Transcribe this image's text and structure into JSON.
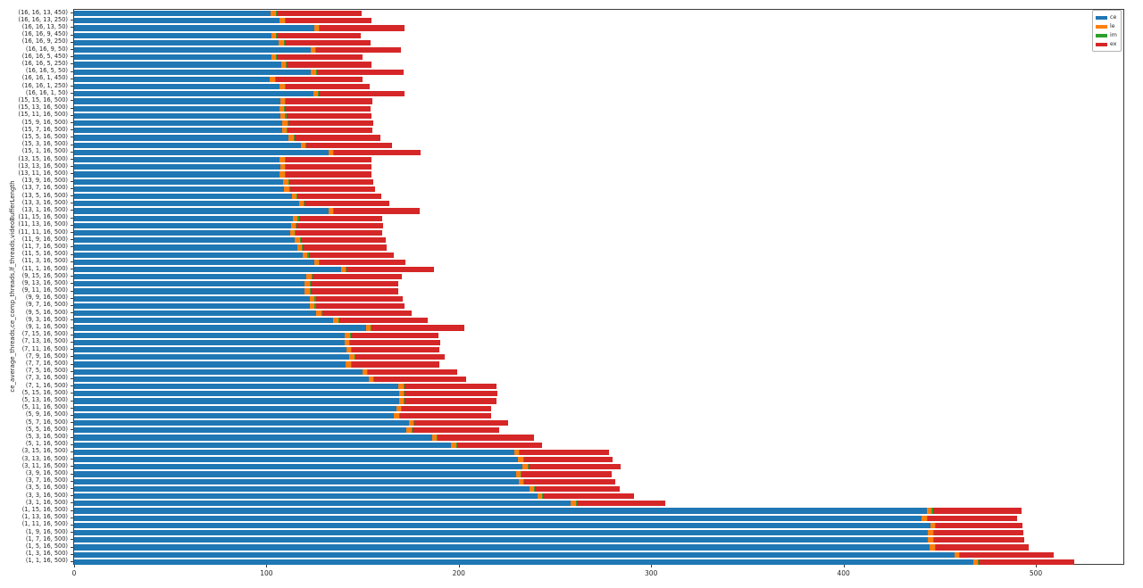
{
  "figure": {
    "background": "#ffffff"
  },
  "chart_data": {
    "type": "bar",
    "orientation": "horizontal",
    "stacked": true,
    "title": "",
    "xlabel": "",
    "ylabel": "ce_average_threads,ce_comp_threads,lf_threads,videoBufferLength",
    "xlim": [
      0,
      545.5
    ],
    "x_ticks": [
      0,
      100,
      200,
      300,
      400,
      500
    ],
    "grid": false,
    "legend": {
      "position": "upper right",
      "entries": [
        "ce",
        "le",
        "im",
        "ex"
      ]
    },
    "colors": {
      "ce": "#1f77b4",
      "le": "#ff7f0e",
      "im": "#2ca02c",
      "ex": "#d62728"
    },
    "categories": [
      "(16, 16, 13, 450)",
      "(16, 16, 13, 250)",
      "(16, 16, 13, 50)",
      "(16, 16, 9, 450)",
      "(16, 16, 9, 250)",
      "(16, 16, 9, 50)",
      "(16, 16, 5, 450)",
      "(16, 16, 5, 250)",
      "(16, 16, 5, 50)",
      "(16, 16, 1, 450)",
      "(16, 16, 1, 250)",
      "(16, 16, 1, 50)",
      "(15, 15, 16, 500)",
      "(15, 13, 16, 500)",
      "(15, 11, 16, 500)",
      "(15, 9, 16, 500)",
      "(15, 7, 16, 500)",
      "(15, 5, 16, 500)",
      "(15, 3, 16, 500)",
      "(15, 1, 16, 500)",
      "(13, 15, 16, 500)",
      "(13, 13, 16, 500)",
      "(13, 11, 16, 500)",
      "(13, 9, 16, 500)",
      "(13, 7, 16, 500)",
      "(13, 5, 16, 500)",
      "(13, 3, 16, 500)",
      "(13, 1, 16, 500)",
      "(11, 15, 16, 500)",
      "(11, 13, 16, 500)",
      "(11, 11, 16, 500)",
      "(11, 9, 16, 500)",
      "(11, 7, 16, 500)",
      "(11, 5, 16, 500)",
      "(11, 3, 16, 500)",
      "(11, 1, 16, 500)",
      "(9, 15, 16, 500)",
      "(9, 13, 16, 500)",
      "(9, 11, 16, 500)",
      "(9, 9, 16, 500)",
      "(9, 7, 16, 500)",
      "(9, 5, 16, 500)",
      "(9, 3, 16, 500)",
      "(9, 1, 16, 500)",
      "(7, 15, 16, 500)",
      "(7, 13, 16, 500)",
      "(7, 11, 16, 500)",
      "(7, 9, 16, 500)",
      "(7, 7, 16, 500)",
      "(7, 5, 16, 500)",
      "(7, 3, 16, 500)",
      "(7, 1, 16, 500)",
      "(5, 15, 16, 500)",
      "(5, 13, 16, 500)",
      "(5, 11, 16, 500)",
      "(5, 9, 16, 500)",
      "(5, 7, 16, 500)",
      "(5, 5, 16, 500)",
      "(5, 3, 16, 500)",
      "(5, 1, 16, 500)",
      "(3, 15, 16, 500)",
      "(3, 13, 16, 500)",
      "(3, 11, 16, 500)",
      "(3, 9, 16, 500)",
      "(3, 7, 16, 500)",
      "(3, 5, 16, 500)",
      "(3, 3, 16, 500)",
      "(3, 1, 16, 500)",
      "(1, 15, 16, 500)",
      "(1, 13, 16, 500)",
      "(1, 11, 16, 500)",
      "(1, 9, 16, 500)",
      "(1, 7, 16, 500)",
      "(1, 5, 16, 500)",
      "(1, 3, 16, 500)",
      "(1, 1, 16, 500)"
    ],
    "series": [
      {
        "name": "ce",
        "color": "#1f77b4",
        "values": [
          102.2,
          106.9,
          124.7,
          102.5,
          106.4,
          122.8,
          102.5,
          107.7,
          123.1,
          101.9,
          106.9,
          124.2,
          107.2,
          106.6,
          107.3,
          108.4,
          108.1,
          111.5,
          117.7,
          132.3,
          106.9,
          107.2,
          106.9,
          108.7,
          109.2,
          113.1,
          116.9,
          132.3,
          113.8,
          112.8,
          112.3,
          114.9,
          115.9,
          118.9,
          124.7,
          138.6,
          120.8,
          120.0,
          120.0,
          122.6,
          122.6,
          125.9,
          134.7,
          151.7,
          140.9,
          140.5,
          141.6,
          143.2,
          141.2,
          149.8,
          153.2,
          168.7,
          169.0,
          169.0,
          167.6,
          166.4,
          174.1,
          172.9,
          186.0,
          196.0,
          228.9,
          230.9,
          233.2,
          229.7,
          231.2,
          236.6,
          240.9,
          258.2,
          443.4,
          440.8,
          445.1,
          443.9,
          443.9,
          444.9,
          457.7,
          467.4
        ]
      },
      {
        "name": "le",
        "color": "#ff7f0e",
        "values": [
          2.5,
          2.5,
          2.5,
          2.5,
          2.5,
          2.5,
          2.5,
          2.5,
          2.5,
          2.5,
          2.5,
          2.5,
          2.5,
          2.5,
          2.5,
          2.5,
          2.5,
          2.5,
          2.5,
          2.5,
          2.5,
          2.5,
          2.5,
          2.5,
          2.5,
          2.5,
          2.5,
          2.5,
          2.5,
          2.5,
          2.5,
          2.5,
          2.5,
          2.5,
          2.5,
          2.5,
          2.5,
          2.5,
          2.5,
          2.5,
          2.5,
          2.5,
          2.5,
          2.5,
          2.5,
          2.5,
          2.5,
          2.5,
          2.5,
          2.5,
          2.5,
          2.5,
          2.5,
          2.5,
          2.5,
          2.5,
          2.5,
          2.5,
          2.5,
          2.5,
          2.5,
          2.5,
          2.5,
          2.5,
          2.5,
          2.5,
          2.5,
          2.5,
          2.5,
          2.5,
          2.5,
          2.5,
          2.5,
          2.5,
          2.5,
          2.5
        ]
      },
      {
        "name": "im",
        "color": "#2ca02c",
        "values": [
          0.5,
          0.5,
          0.5,
          0.5,
          0.5,
          0.5,
          0.5,
          0.5,
          0.5,
          0.5,
          0.5,
          0.5,
          0.5,
          0.5,
          0.5,
          0.5,
          0.5,
          0.5,
          0.5,
          0.5,
          0.5,
          0.5,
          0.5,
          0.5,
          0.5,
          0.5,
          0.5,
          0.5,
          0.5,
          0.5,
          0.5,
          0.5,
          0.5,
          0.5,
          0.5,
          0.5,
          0.5,
          0.5,
          0.5,
          0.5,
          0.5,
          0.5,
          0.5,
          0.5,
          0.5,
          0.5,
          0.5,
          0.5,
          0.5,
          0.5,
          0.5,
          0.5,
          0.5,
          0.5,
          0.5,
          0.5,
          0.5,
          0.5,
          0.5,
          0.5,
          0.5,
          0.5,
          0.5,
          0.5,
          0.5,
          0.5,
          0.5,
          0.5,
          0.5,
          0.5,
          0.5,
          0.5,
          0.5,
          0.5,
          0.5,
          0.5
        ]
      },
      {
        "name": "ex",
        "color": "#d62728",
        "values": [
          44.2,
          44.6,
          44.0,
          43.5,
          44.9,
          44.1,
          44.3,
          44.1,
          45.4,
          44.9,
          43.8,
          44.5,
          44.9,
          44.4,
          44.2,
          44.1,
          44.1,
          44.6,
          44.6,
          45.0,
          44.6,
          44.6,
          44.6,
          43.8,
          44.1,
          43.6,
          44.1,
          44.2,
          43.4,
          44.8,
          44.9,
          44.3,
          43.6,
          44.5,
          44.4,
          45.3,
          46.4,
          45.7,
          45.4,
          45.4,
          46.2,
          46.7,
          46.1,
          48.0,
          45.6,
          46.8,
          45.4,
          46.4,
          45.8,
          46.5,
          47.7,
          48.0,
          47.9,
          47.7,
          46.0,
          47.5,
          48.7,
          45.3,
          50.0,
          44.5,
          46.0,
          46.1,
          47.9,
          46.7,
          47.1,
          44.0,
          47.0,
          46.3,
          46.0,
          46.3,
          45.0,
          46.7,
          47.0,
          48.3,
          48.6,
          49.4
        ]
      }
    ]
  }
}
